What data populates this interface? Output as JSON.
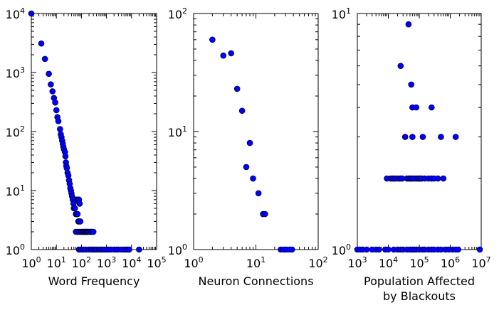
{
  "chart_data": [
    {
      "type": "scatter",
      "xscale": "log",
      "yscale": "log",
      "xlim": [
        1,
        100000
      ],
      "ylim": [
        1,
        10000
      ],
      "xlabel": [
        "Word Frequency"
      ],
      "ylabel": "",
      "title": "",
      "grid": false,
      "point_color": "#0000ff",
      "x_ticks": [
        {
          "base": "10",
          "exp": "0"
        },
        {
          "base": "10",
          "exp": "1"
        },
        {
          "base": "10",
          "exp": "2"
        },
        {
          "base": "10",
          "exp": "3"
        },
        {
          "base": "10",
          "exp": "4"
        },
        {
          "base": "10",
          "exp": "5"
        }
      ],
      "y_ticks": [
        {
          "base": "10",
          "exp": "0"
        },
        {
          "base": "10",
          "exp": "1"
        },
        {
          "base": "10",
          "exp": "2"
        },
        {
          "base": "10",
          "exp": "3"
        },
        {
          "base": "10",
          "exp": "4"
        }
      ],
      "points": [
        [
          1,
          10000
        ],
        [
          2.5,
          3100
        ],
        [
          3.5,
          1700
        ],
        [
          5,
          950
        ],
        [
          6,
          630
        ],
        [
          7,
          480
        ],
        [
          8,
          370
        ],
        [
          9,
          310
        ],
        [
          10,
          230
        ],
        [
          11,
          175
        ],
        [
          12,
          150
        ],
        [
          14,
          110
        ],
        [
          15,
          90
        ],
        [
          16,
          80
        ],
        [
          17,
          70
        ],
        [
          18,
          62
        ],
        [
          19,
          55
        ],
        [
          20,
          50
        ],
        [
          22,
          45
        ],
        [
          23,
          38
        ],
        [
          24,
          30
        ],
        [
          25,
          26
        ],
        [
          26,
          24
        ],
        [
          28,
          20
        ],
        [
          30,
          18
        ],
        [
          32,
          15
        ],
        [
          34,
          13
        ],
        [
          36,
          11
        ],
        [
          38,
          10
        ],
        [
          40,
          9
        ],
        [
          42,
          8
        ],
        [
          45,
          7
        ],
        [
          48,
          6
        ],
        [
          50,
          5
        ],
        [
          55,
          5
        ],
        [
          60,
          4
        ],
        [
          65,
          4
        ],
        [
          70,
          4
        ],
        [
          75,
          3
        ],
        [
          80,
          3
        ],
        [
          90,
          3
        ],
        [
          60,
          7
        ],
        [
          70,
          7
        ],
        [
          75,
          7
        ],
        [
          80,
          7
        ],
        [
          85,
          6
        ],
        [
          60,
          2
        ],
        [
          70,
          2
        ],
        [
          80,
          2
        ],
        [
          90,
          2
        ],
        [
          100,
          2
        ],
        [
          110,
          2
        ],
        [
          120,
          2
        ],
        [
          130,
          2
        ],
        [
          140,
          2
        ],
        [
          150,
          2
        ],
        [
          160,
          2
        ],
        [
          170,
          2
        ],
        [
          180,
          2
        ],
        [
          200,
          2
        ],
        [
          220,
          2
        ],
        [
          250,
          2
        ],
        [
          280,
          2
        ],
        [
          300,
          2
        ],
        [
          80,
          1
        ],
        [
          100,
          1
        ],
        [
          120,
          1
        ],
        [
          150,
          1
        ],
        [
          200,
          1
        ],
        [
          250,
          1
        ],
        [
          300,
          1
        ],
        [
          350,
          1
        ],
        [
          400,
          1
        ],
        [
          500,
          1
        ],
        [
          600,
          1
        ],
        [
          700,
          1
        ],
        [
          800,
          1
        ],
        [
          1000,
          1
        ],
        [
          1200,
          1
        ],
        [
          1500,
          1
        ],
        [
          2000,
          1
        ],
        [
          2500,
          1
        ],
        [
          3000,
          1
        ],
        [
          4000,
          1
        ],
        [
          5000,
          1
        ],
        [
          6000,
          1
        ],
        [
          7000,
          1
        ],
        [
          8000,
          1
        ],
        [
          20000,
          1
        ]
      ]
    },
    {
      "type": "scatter",
      "xscale": "log",
      "yscale": "log",
      "xlim": [
        1,
        100
      ],
      "ylim": [
        1,
        100
      ],
      "xlabel": [
        "Neuron Connections"
      ],
      "ylabel": "",
      "title": "",
      "grid": false,
      "point_color": "#0000ff",
      "x_ticks": [
        {
          "base": "10",
          "exp": "0"
        },
        {
          "base": "10",
          "exp": "1"
        },
        {
          "base": "10",
          "exp": "2"
        }
      ],
      "y_ticks": [
        {
          "base": "10",
          "exp": "0"
        },
        {
          "base": "10",
          "exp": "1"
        },
        {
          "base": "10",
          "exp": "2"
        }
      ],
      "points": [
        [
          2,
          60
        ],
        [
          3,
          44
        ],
        [
          4,
          46
        ],
        [
          5,
          23
        ],
        [
          6,
          15
        ],
        [
          7,
          5
        ],
        [
          8,
          8
        ],
        [
          9,
          4
        ],
        [
          11,
          3
        ],
        [
          13,
          2
        ],
        [
          14,
          2
        ],
        [
          25,
          1
        ],
        [
          28,
          1
        ],
        [
          31,
          1
        ],
        [
          35,
          1
        ],
        [
          38,
          1
        ]
      ]
    },
    {
      "type": "scatter",
      "xscale": "log",
      "yscale": "log",
      "xlim": [
        1000,
        10000000
      ],
      "ylim": [
        1,
        10
      ],
      "xlabel": [
        "Population Affected",
        "by Blackouts"
      ],
      "ylabel": "",
      "title": "",
      "grid": false,
      "point_color": "#0000ff",
      "x_ticks": [
        {
          "base": "10",
          "exp": "3"
        },
        {
          "base": "10",
          "exp": "4"
        },
        {
          "base": "10",
          "exp": "5"
        },
        {
          "base": "10",
          "exp": "6"
        },
        {
          "base": "10",
          "exp": "7"
        }
      ],
      "y_ticks": [
        {
          "base": "10",
          "exp": "0"
        },
        {
          "base": "10",
          "exp": "1"
        }
      ],
      "points": [
        [
          45000,
          9
        ],
        [
          25000,
          6
        ],
        [
          55000,
          5
        ],
        [
          60000,
          4
        ],
        [
          80000,
          4
        ],
        [
          250000,
          4
        ],
        [
          35000,
          3
        ],
        [
          60000,
          3
        ],
        [
          130000,
          3
        ],
        [
          500000,
          3
        ],
        [
          1500000,
          3
        ],
        [
          9000,
          2
        ],
        [
          12000,
          2
        ],
        [
          14000,
          2
        ],
        [
          16000,
          2
        ],
        [
          18000,
          2
        ],
        [
          22000,
          2
        ],
        [
          25000,
          2
        ],
        [
          28000,
          2
        ],
        [
          40000,
          2
        ],
        [
          45000,
          2
        ],
        [
          50000,
          2
        ],
        [
          55000,
          2
        ],
        [
          60000,
          2
        ],
        [
          70000,
          2
        ],
        [
          80000,
          2
        ],
        [
          90000,
          2
        ],
        [
          100000,
          2
        ],
        [
          110000,
          2
        ],
        [
          120000,
          2
        ],
        [
          150000,
          2
        ],
        [
          200000,
          2
        ],
        [
          250000,
          2
        ],
        [
          300000,
          2
        ],
        [
          400000,
          2
        ],
        [
          600000,
          2
        ],
        [
          1000,
          1
        ],
        [
          1200,
          1
        ],
        [
          1500,
          1
        ],
        [
          2000,
          1
        ],
        [
          3000,
          1
        ],
        [
          4000,
          1
        ],
        [
          5000,
          1
        ],
        [
          8000,
          1
        ],
        [
          10000,
          1
        ],
        [
          15000,
          1
        ],
        [
          20000,
          1
        ],
        [
          25000,
          1
        ],
        [
          30000,
          1
        ],
        [
          40000,
          1
        ],
        [
          50000,
          1
        ],
        [
          60000,
          1
        ],
        [
          70000,
          1
        ],
        [
          80000,
          1
        ],
        [
          100000,
          1
        ],
        [
          130000,
          1
        ],
        [
          150000,
          1
        ],
        [
          200000,
          1
        ],
        [
          250000,
          1
        ],
        [
          300000,
          1
        ],
        [
          400000,
          1
        ],
        [
          500000,
          1
        ],
        [
          700000,
          1
        ],
        [
          900000,
          1
        ],
        [
          1200000,
          1
        ],
        [
          1500000,
          1
        ],
        [
          1800000,
          1
        ],
        [
          9000000,
          1
        ]
      ]
    }
  ]
}
